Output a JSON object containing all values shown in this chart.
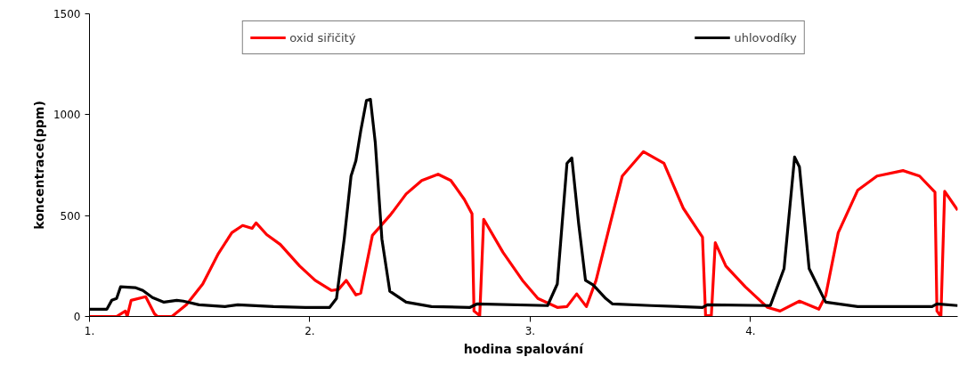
{
  "chart_data": {
    "type": "line",
    "xlabel": "hodina spalování",
    "ylabel": "koncentrace(ppm)",
    "xlim": [
      1,
      4.94
    ],
    "ylim": [
      0,
      1500
    ],
    "xticks": [
      {
        "value": 1,
        "label": "1."
      },
      {
        "value": 2,
        "label": "2."
      },
      {
        "value": 3,
        "label": "3."
      },
      {
        "value": 4,
        "label": "4."
      }
    ],
    "yticks": [
      0,
      500,
      1000,
      1500
    ],
    "grid": false,
    "legend": "top",
    "marker": "none",
    "line_style": "solid",
    "series": [
      {
        "name": "oxid siřičitý",
        "color": "#ff0000",
        "x": [
          1.0,
          1.123,
          1.163,
          1.171,
          1.189,
          1.255,
          1.295,
          1.308,
          1.374,
          1.44,
          1.514,
          1.585,
          1.646,
          1.695,
          1.738,
          1.756,
          1.804,
          1.866,
          1.954,
          2.024,
          2.099,
          2.13,
          2.165,
          2.209,
          2.231,
          2.284,
          2.363,
          2.376,
          2.437,
          2.508,
          2.582,
          2.64,
          2.701,
          2.736,
          2.745,
          2.771,
          2.789,
          2.877,
          2.965,
          3.035,
          3.123,
          3.167,
          3.211,
          3.255,
          3.299,
          3.36,
          3.418,
          3.514,
          3.607,
          3.695,
          3.782,
          3.796,
          3.822,
          3.84,
          3.888,
          3.976,
          4.077,
          4.134,
          4.222,
          4.31,
          4.341,
          4.398,
          4.486,
          4.574,
          4.692,
          4.767,
          4.837,
          4.846,
          4.864,
          4.881,
          4.94
        ],
        "values": [
          0,
          0,
          27,
          0,
          80,
          98,
          13,
          0,
          0,
          58,
          161,
          312,
          415,
          451,
          437,
          464,
          406,
          357,
          250,
          179,
          129,
          134,
          179,
          107,
          116,
          402,
          500,
          518,
          607,
          674,
          705,
          674,
          580,
          509,
          27,
          4,
          482,
          317,
          179,
          89,
          45,
          49,
          112,
          49,
          179,
          446,
          696,
          817,
          759,
          536,
          393,
          4,
          4,
          366,
          250,
          147,
          45,
          27,
          76,
          36,
          103,
          415,
          625,
          696,
          723,
          696,
          616,
          27,
          0,
          620,
          527
        ]
      },
      {
        "name": "uhlovodíky",
        "color": "#000000",
        "x": [
          1.0,
          1.079,
          1.101,
          1.123,
          1.141,
          1.207,
          1.242,
          1.286,
          1.338,
          1.396,
          1.426,
          1.497,
          1.615,
          1.673,
          1.835,
          1.98,
          2.09,
          2.121,
          2.156,
          2.187,
          2.209,
          2.231,
          2.257,
          2.275,
          2.297,
          2.327,
          2.363,
          2.437,
          2.552,
          2.727,
          2.758,
          3.079,
          3.123,
          3.167,
          3.189,
          3.22,
          3.251,
          3.286,
          3.343,
          3.374,
          3.549,
          3.782,
          3.804,
          4.09,
          4.152,
          4.2,
          4.222,
          4.266,
          4.341,
          4.486,
          4.824,
          4.846,
          4.94
        ],
        "values": [
          36,
          36,
          80,
          89,
          147,
          143,
          129,
          94,
          71,
          80,
          76,
          58,
          49,
          58,
          49,
          45,
          45,
          89,
          384,
          696,
          772,
          920,
          1071,
          1076,
          862,
          384,
          125,
          71,
          49,
          45,
          62,
          54,
          161,
          759,
          786,
          460,
          179,
          156,
          89,
          62,
          54,
          45,
          58,
          54,
          237,
          790,
          741,
          237,
          71,
          49,
          49,
          62,
          54
        ]
      }
    ]
  }
}
